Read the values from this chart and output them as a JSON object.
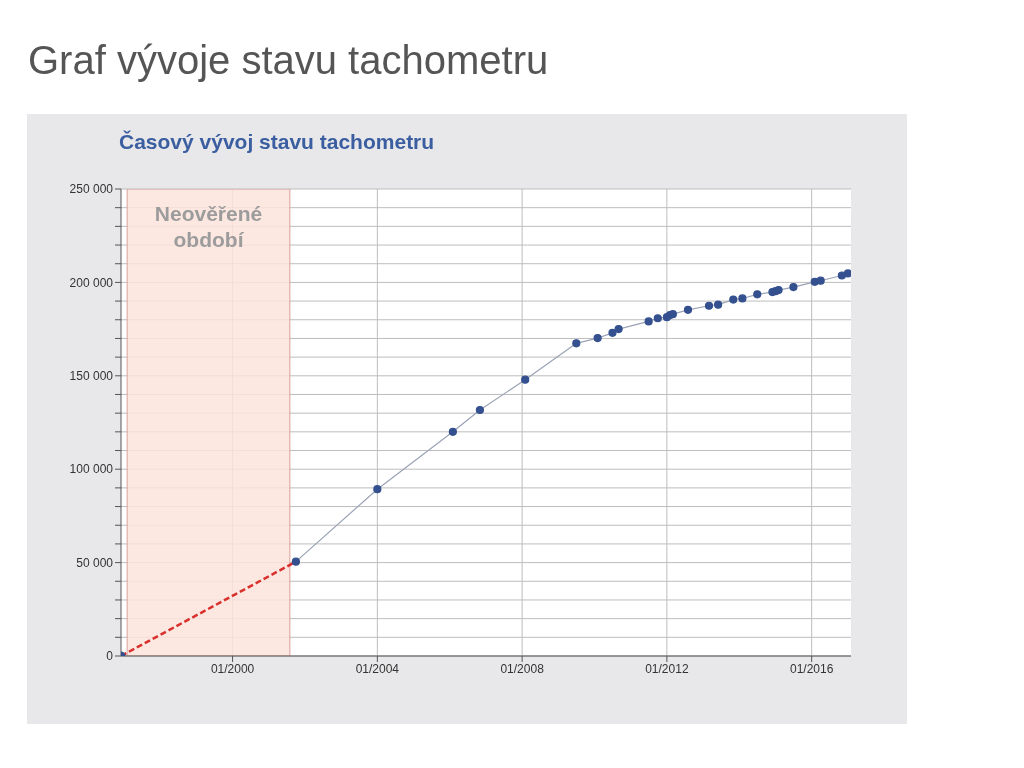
{
  "chart_data": {
    "type": "line",
    "title": "Graf vývoje stavu tachometru",
    "subtitle": "Časový vývoj stavu tachometru",
    "xlim": [
      "1996-12",
      "2017-02"
    ],
    "xticks": [
      {
        "value": "2000-01",
        "label": "01/2000"
      },
      {
        "value": "2004-01",
        "label": "01/2004"
      },
      {
        "value": "2008-01",
        "label": "01/2008"
      },
      {
        "value": "2012-01",
        "label": "01/2012"
      },
      {
        "value": "2016-01",
        "label": "01/2016"
      }
    ],
    "ylim": [
      0,
      250000
    ],
    "yticks": [
      {
        "value": 0,
        "label": "0"
      },
      {
        "value": 10000,
        "label": null
      },
      {
        "value": 20000,
        "label": null
      },
      {
        "value": 30000,
        "label": null
      },
      {
        "value": 40000,
        "label": null
      },
      {
        "value": 50000,
        "label": "50 000"
      },
      {
        "value": 60000,
        "label": null
      },
      {
        "value": 70000,
        "label": null
      },
      {
        "value": 80000,
        "label": null
      },
      {
        "value": 90000,
        "label": null
      },
      {
        "value": 100000,
        "label": "100 000"
      },
      {
        "value": 110000,
        "label": null
      },
      {
        "value": 120000,
        "label": null
      },
      {
        "value": 130000,
        "label": null
      },
      {
        "value": 140000,
        "label": null
      },
      {
        "value": 150000,
        "label": "150 000"
      },
      {
        "value": 160000,
        "label": null
      },
      {
        "value": 170000,
        "label": null
      },
      {
        "value": 180000,
        "label": null
      },
      {
        "value": 190000,
        "label": null
      },
      {
        "value": 200000,
        "label": "200 000"
      },
      {
        "value": 210000,
        "label": null
      },
      {
        "value": 220000,
        "label": null
      },
      {
        "value": 230000,
        "label": null
      },
      {
        "value": 240000,
        "label": null
      },
      {
        "value": 250000,
        "label": "250 000"
      }
    ],
    "grid": true,
    "bands": [
      {
        "axis": "x",
        "from": "1997-02",
        "to": "2001-08",
        "label": "Neověřené období",
        "color": "#fbe3dc"
      }
    ],
    "series": [
      {
        "type": "line",
        "color": "#d9302c",
        "line_style": "dashed",
        "marker": "none",
        "x": [
          "1996-12",
          "2001-10"
        ],
        "values": [
          0,
          50500
        ]
      },
      {
        "type": "scatter",
        "color": "#34508f",
        "marker": "circle",
        "x": [
          "1996-12"
        ],
        "values": [
          0
        ]
      },
      {
        "type": "line",
        "color": "#34508f",
        "line_style": "solid",
        "marker": "circle",
        "x": [
          "2001-10",
          "2004-01",
          "2006-02",
          "2006-11",
          "2008-02",
          "2009-07",
          "2010-02",
          "2010-07",
          "2010-09",
          "2011-07",
          "2011-10",
          "2012-01",
          "2012-02",
          "2012-03",
          "2012-08",
          "2013-03",
          "2013-06",
          "2013-11",
          "2014-02",
          "2014-07",
          "2014-12",
          "2015-01",
          "2015-02",
          "2015-07",
          "2016-02",
          "2016-04",
          "2016-11",
          "2017-01"
        ],
        "values": [
          50500,
          89300,
          120000,
          131700,
          147900,
          167400,
          170200,
          173000,
          175000,
          179100,
          180800,
          181400,
          182500,
          183000,
          185300,
          187500,
          188100,
          190800,
          191400,
          193600,
          194800,
          195300,
          195900,
          197500,
          200300,
          200900,
          203700,
          204800
        ]
      }
    ]
  }
}
